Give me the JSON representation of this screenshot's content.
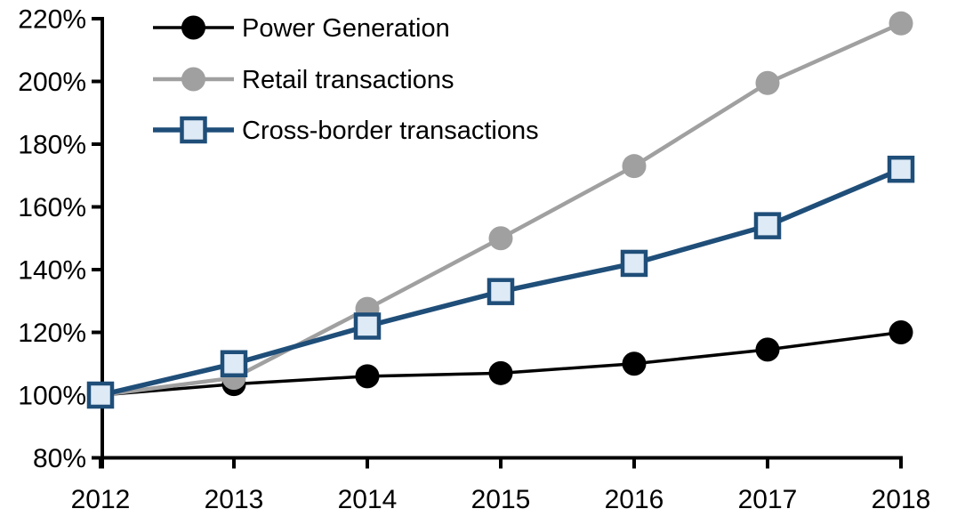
{
  "chart_data": {
    "type": "line",
    "title": "",
    "xlabel": "",
    "ylabel": "",
    "x": [
      2012,
      2013,
      2014,
      2015,
      2016,
      2017,
      2018
    ],
    "series": [
      {
        "name": "Power Generation",
        "values": [
          100,
          103.5,
          106,
          107,
          110,
          114.5,
          120
        ],
        "color": "#000000",
        "marker": "circle",
        "marker_fill": "#000000",
        "line_width": 3.5
      },
      {
        "name": "Retail transactions",
        "values": [
          100,
          105.5,
          127.5,
          150,
          173,
          199.5,
          218.5
        ],
        "color": "#A0A0A0",
        "marker": "circle",
        "marker_fill": "#A0A0A0",
        "line_width": 4.5
      },
      {
        "name": "Cross-border transactions",
        "values": [
          100,
          110,
          122,
          133,
          142,
          154,
          172
        ],
        "color": "#1F4E79",
        "marker": "square",
        "marker_fill": "#DEEAF6",
        "line_width": 5.5
      }
    ],
    "y_axis": {
      "min": 80,
      "max": 220,
      "step": 20,
      "tick_labels": [
        "80%",
        "100%",
        "120%",
        "140%",
        "160%",
        "180%",
        "200%",
        "220%"
      ],
      "unit": "%"
    },
    "x_axis": {
      "tick_labels": [
        "2012",
        "2013",
        "2014",
        "2015",
        "2016",
        "2017",
        "2018"
      ]
    },
    "legend": {
      "position": "top-left"
    },
    "grid": false,
    "background": "#FFFFFF",
    "text_color": "#000000",
    "axis_color": "#000000"
  }
}
